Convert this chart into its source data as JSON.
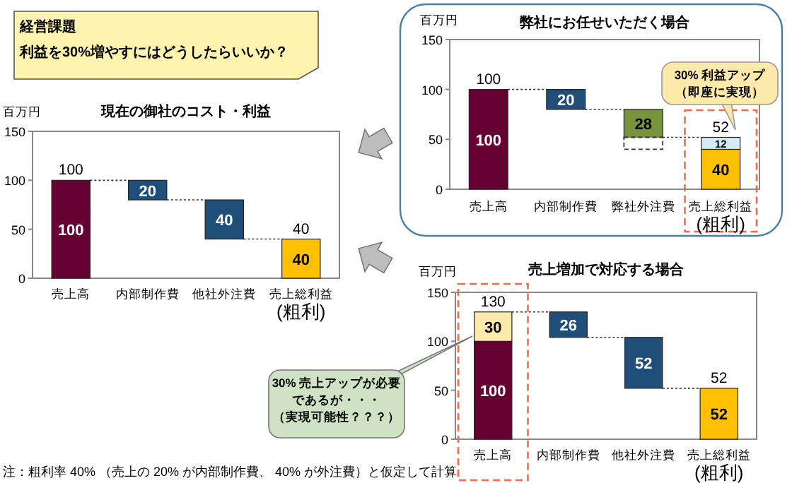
{
  "chart_data": [
    {
      "type": "bar",
      "title": "現在の御社のコスト・利益",
      "ylabel": "百万円",
      "categories": [
        "売上高",
        "内部制作費",
        "他社外注費",
        "売上総利益"
      ],
      "series": [
        {
          "values": [
            100,
            20,
            40,
            40
          ],
          "base": [
            0,
            80,
            40,
            0
          ],
          "colors": [
            "#660033",
            "#1f4e79",
            "#1f4e79",
            "#ffc000"
          ],
          "value_labels": [
            "100",
            "20",
            "40",
            "40"
          ]
        }
      ],
      "totals": [
        "100",
        null,
        null,
        "40"
      ],
      "ylim": [
        0,
        150
      ],
      "yticks": [
        0,
        50,
        100,
        150
      ],
      "annotations": [
        "経営課題",
        "利益を30%増やすにはどうしたらいいか？",
        "(粗利)",
        "注：粗利率 40% （売上の 20% が内部制作費、 40% が外注費）と仮定して計算"
      ]
    },
    {
      "type": "bar",
      "title": "弊社にお任せいただく場合",
      "ylabel": "百万円",
      "categories": [
        "売上高",
        "内部制作費",
        "弊社外注費",
        "売上総利益"
      ],
      "series": [
        {
          "values": [
            100,
            20,
            28,
            40
          ],
          "base": [
            0,
            80,
            52,
            0
          ],
          "colors": [
            "#660033",
            "#1f4e79",
            "#77933c",
            "#ffc000"
          ],
          "value_labels": [
            "100",
            "20",
            "28",
            "40"
          ]
        },
        {
          "values": [
            null,
            null,
            null,
            12
          ],
          "base": [
            null,
            null,
            null,
            40
          ],
          "color": "#d4ecf8",
          "value_labels": [
            null,
            null,
            null,
            "12"
          ]
        },
        {
          "values": [
            null,
            null,
            12,
            null
          ],
          "base": [
            null,
            null,
            40,
            null
          ],
          "color": "#ffffff",
          "line_style": "dashed"
        }
      ],
      "totals": [
        "100",
        null,
        null,
        "52"
      ],
      "ylim": [
        0,
        150
      ],
      "yticks": [
        0,
        50,
        100,
        150
      ],
      "annotations": [
        "30% 利益アップ",
        "（即座に実現）",
        "(粗利)"
      ]
    },
    {
      "type": "bar",
      "title": "売上増加で対応する場合",
      "ylabel": "百万円",
      "categories": [
        "売上高",
        "内部制作費",
        "他社外注費",
        "売上総利益"
      ],
      "series": [
        {
          "values": [
            100,
            26,
            52,
            52
          ],
          "base": [
            0,
            104,
            52,
            0
          ],
          "colors": [
            "#660033",
            "#1f4e79",
            "#1f4e79",
            "#ffc000"
          ],
          "value_labels": [
            "100",
            "26",
            "52",
            "52"
          ]
        },
        {
          "values": [
            30,
            null,
            null,
            null
          ],
          "base": [
            100,
            null,
            null,
            null
          ],
          "color": "#fde9a9",
          "value_labels": [
            "30",
            null,
            null,
            null
          ]
        }
      ],
      "totals": [
        "130",
        null,
        null,
        "52"
      ],
      "ylim": [
        0,
        150
      ],
      "yticks": [
        0,
        50,
        100,
        150
      ],
      "annotations": [
        "30% 売上アップが必要",
        "であるが・・・",
        "（実現可能性？？？）",
        "(粗利)"
      ]
    }
  ]
}
